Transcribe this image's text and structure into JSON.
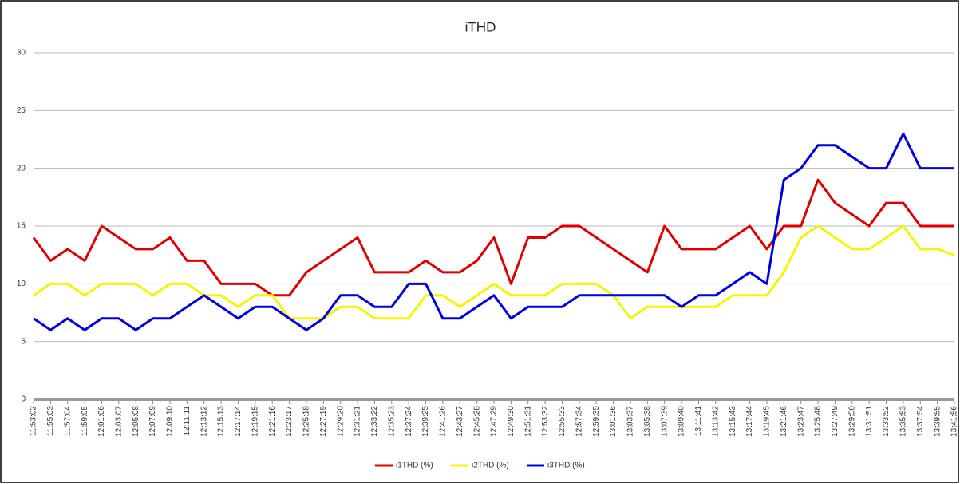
{
  "chart_data": {
    "type": "line",
    "title": "iTHD",
    "categories": [
      "11:53:02",
      "11:55:03",
      "11:57:04",
      "11:59:05",
      "12:01:06",
      "12:03:07",
      "12:05:08",
      "12:07:09",
      "12:09:10",
      "12:11:11",
      "12:13:12",
      "12:15:13",
      "12:17:14",
      "12:19:15",
      "12:21:16",
      "12:23:17",
      "12:25:18",
      "12:27:19",
      "12:29:20",
      "12:31:21",
      "12:33:22",
      "12:35:23",
      "12:37:24",
      "12:39:25",
      "12:41:26",
      "12:43:27",
      "12:45:28",
      "12:47:29",
      "12:49:30",
      "12:51:31",
      "12:53:32",
      "12:55:33",
      "12:57:34",
      "12:59:35",
      "13:01:36",
      "13:03:37",
      "13:05:38",
      "13:07:39",
      "13:09:40",
      "13:11:41",
      "13:13:42",
      "13:15:43",
      "13:17:44",
      "13:19:45",
      "13:21:46",
      "13:23:47",
      "13:25:48",
      "13:27:49",
      "13:29:50",
      "13:31:51",
      "13:33:52",
      "13:35:53",
      "13:37:54",
      "13:39:55",
      "13:41:56"
    ],
    "series": [
      {
        "name": "i1THD (%)",
        "color": "#e00000",
        "values": [
          14,
          12,
          13,
          12,
          15,
          14,
          13,
          13,
          14,
          12,
          12,
          10,
          10,
          10,
          9,
          9,
          11,
          12,
          13,
          14,
          11,
          11,
          11,
          12,
          11,
          11,
          12,
          14,
          10,
          14,
          14,
          15,
          15,
          14,
          13,
          12,
          11,
          15,
          13,
          13,
          13,
          14,
          15,
          13,
          15,
          15,
          19,
          17,
          16,
          15,
          17,
          17,
          15,
          15,
          15
        ]
      },
      {
        "name": "i2THD (%)",
        "color": "#f5f500",
        "values": [
          9,
          10,
          10,
          9,
          10,
          10,
          10,
          9,
          10,
          10,
          9,
          9,
          8,
          9,
          9,
          7,
          7,
          7,
          8,
          8,
          7,
          7,
          7,
          9,
          9,
          8,
          9,
          10,
          9,
          9,
          9,
          10,
          10,
          10,
          9,
          7,
          8,
          8,
          8,
          8,
          8,
          9,
          9,
          9,
          11,
          14,
          15,
          14,
          13,
          13,
          14,
          15,
          13,
          13,
          12.5
        ]
      },
      {
        "name": "i3THD (%)",
        "color": "#0000e0",
        "values": [
          7,
          6,
          7,
          6,
          7,
          7,
          6,
          7,
          7,
          8,
          9,
          8,
          7,
          8,
          8,
          7,
          6,
          7,
          9,
          9,
          8,
          8,
          10,
          10,
          7,
          7,
          8,
          9,
          7,
          8,
          8,
          8,
          9,
          9,
          9,
          9,
          9,
          9,
          8,
          9,
          9,
          10,
          11,
          10,
          19,
          20,
          22,
          22,
          21,
          20,
          20,
          23,
          20,
          20,
          20
        ]
      }
    ],
    "ylim": [
      0,
      30
    ],
    "yticks": [
      0,
      5,
      10,
      15,
      20,
      25,
      30
    ],
    "grid": true
  }
}
